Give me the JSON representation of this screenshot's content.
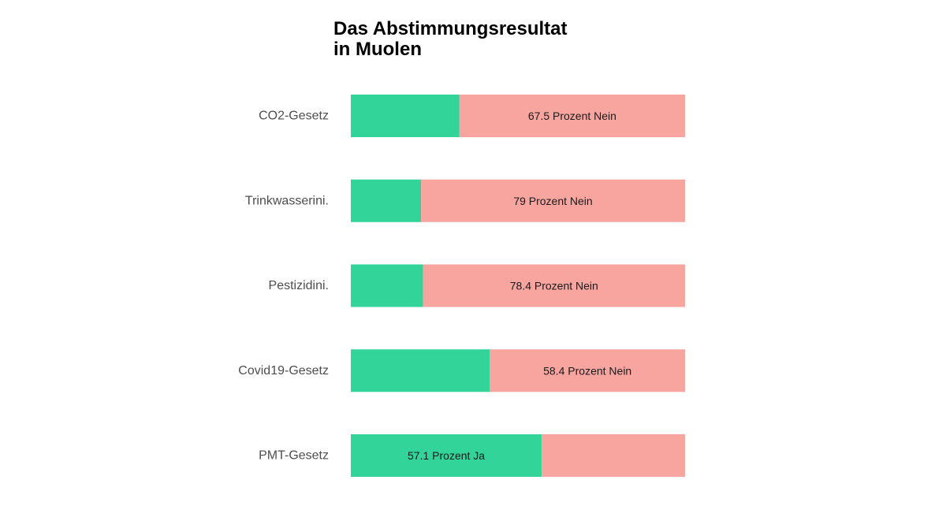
{
  "chart_data": {
    "type": "bar",
    "orientation": "horizontal",
    "stacked": true,
    "title_lines": [
      "Das Abstimmungsresultat",
      "in Muolen"
    ],
    "categories": [
      "CO2-Gesetz",
      "Trinkwasserini.",
      "Pestizidini.",
      "Covid19-Gesetz",
      "PMT-Gesetz"
    ],
    "series": [
      {
        "values": [
          32.5,
          21.0,
          21.6,
          41.6,
          57.1
        ],
        "color": "#33d49a"
      },
      {
        "values": [
          67.5,
          79.0,
          78.4,
          58.4,
          42.9
        ],
        "color": "#f8a5a0"
      }
    ],
    "bar_labels": [
      "67.5 Prozent Nein",
      "79 Prozent Nein",
      "78.4 Prozent Nein",
      "58.4 Prozent Nein",
      "57.1 Prozent Ja"
    ],
    "bar_label_series": [
      "Nein",
      "Nein",
      "Nein",
      "Nein",
      "Ja"
    ],
    "xlim": [
      0,
      100
    ],
    "grid": false,
    "legend": "none"
  }
}
